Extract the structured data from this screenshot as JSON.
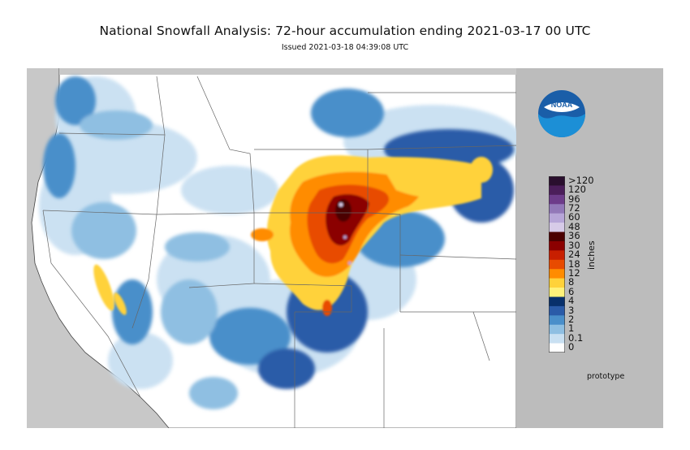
{
  "title": "National Snowfall Analysis: 72-hour accumulation ending 2021-03-17 00 UTC",
  "subtitle": "Issued 2021-03-18 04:39:08 UTC",
  "logo": {
    "text": "NOAA",
    "icon": "noaa-logo-icon"
  },
  "legend": {
    "units": "inches",
    "labels": [
      ">120",
      "120",
      "96",
      "72",
      "60",
      "48",
      "36",
      "30",
      "24",
      "18",
      "12",
      "8",
      "6",
      "4",
      "3",
      "2",
      "1",
      "0.1",
      "0"
    ],
    "colors": [
      "#2a0f2e",
      "#4b1e5a",
      "#6d3c8a",
      "#9278b8",
      "#b7a6d8",
      "#d7cbe8",
      "#4b0000",
      "#8b0000",
      "#c81f00",
      "#e84b00",
      "#ff8c00",
      "#ffd23a",
      "#fff27a",
      "#08306b",
      "#2a5ba8",
      "#4a8fca",
      "#8fbfe2",
      "#c9e0f2",
      "#ffffff"
    ]
  },
  "footer_note": "prototype",
  "colors": {
    "panel": "#bcbcbc",
    "background_gray": "#c8c8c8"
  }
}
